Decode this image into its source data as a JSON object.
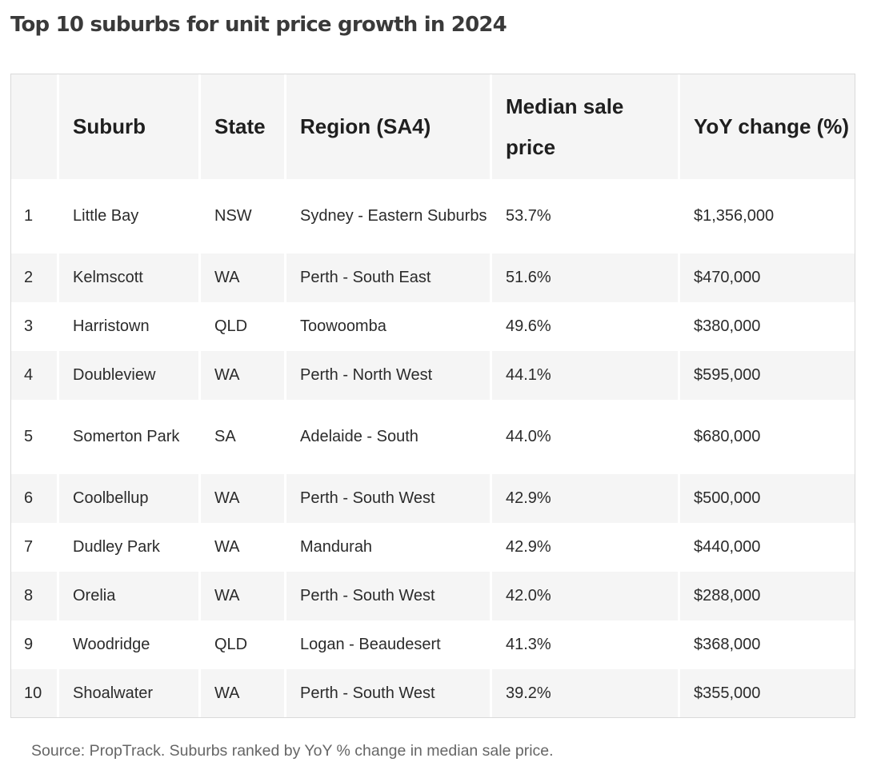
{
  "title": "Top 10 suburbs for unit price growth in 2024",
  "table": {
    "headers": {
      "rank": "",
      "suburb": "Suburb",
      "state": "State",
      "region": "Region (SA4)",
      "median_sale_price": "Median sale price",
      "yoy_change": "YoY change (%)"
    },
    "rows": [
      {
        "rank": "1",
        "suburb": "Little Bay",
        "state": "NSW",
        "region": "Sydney - Eastern Suburbs",
        "median_sale_price": "53.7%",
        "yoy_change": "$1,356,000"
      },
      {
        "rank": "2",
        "suburb": "Kelmscott",
        "state": "WA",
        "region": "Perth - South East",
        "median_sale_price": "51.6%",
        "yoy_change": "$470,000"
      },
      {
        "rank": "3",
        "suburb": "Harristown",
        "state": "QLD",
        "region": "Toowoomba",
        "median_sale_price": "49.6%",
        "yoy_change": "$380,000"
      },
      {
        "rank": "4",
        "suburb": "Doubleview",
        "state": "WA",
        "region": "Perth - North West",
        "median_sale_price": "44.1%",
        "yoy_change": "$595,000"
      },
      {
        "rank": "5",
        "suburb": "Somerton Park",
        "state": "SA",
        "region": "Adelaide - South",
        "median_sale_price": "44.0%",
        "yoy_change": "$680,000"
      },
      {
        "rank": "6",
        "suburb": "Coolbellup",
        "state": "WA",
        "region": "Perth - South West",
        "median_sale_price": "42.9%",
        "yoy_change": "$500,000"
      },
      {
        "rank": "7",
        "suburb": "Dudley Park",
        "state": "WA",
        "region": "Mandurah",
        "median_sale_price": "42.9%",
        "yoy_change": "$440,000"
      },
      {
        "rank": "8",
        "suburb": "Orelia",
        "state": "WA",
        "region": "Perth - South West",
        "median_sale_price": "42.0%",
        "yoy_change": "$288,000"
      },
      {
        "rank": "9",
        "suburb": "Woodridge",
        "state": "QLD",
        "region": "Logan - Beaudesert",
        "median_sale_price": "41.3%",
        "yoy_change": "$368,000"
      },
      {
        "rank": "10",
        "suburb": "Shoalwater",
        "state": "WA",
        "region": "Perth - South West",
        "median_sale_price": "39.2%",
        "yoy_change": "$355,000"
      }
    ]
  },
  "source": "Source: PropTrack. Suburbs ranked by YoY % change in median sale price.",
  "colors": {
    "header_background": "#f5f5f5",
    "stripe_background": "#f5f5f5",
    "body_text": "#2b2b2b",
    "source_text": "#666666",
    "border": "#dadada"
  }
}
